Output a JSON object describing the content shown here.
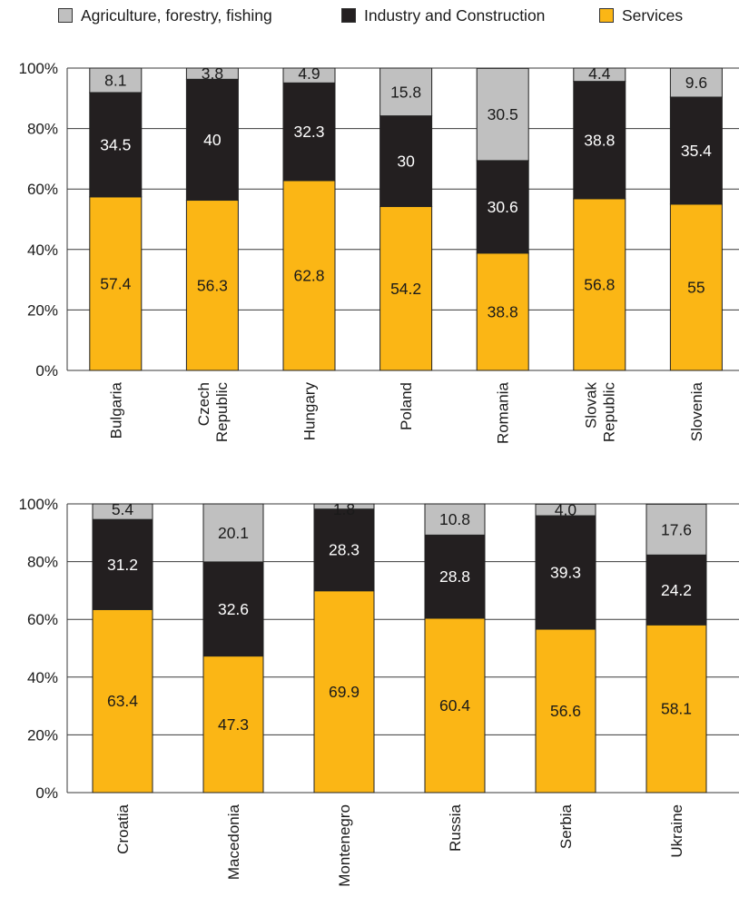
{
  "legend": [
    {
      "name": "Agriculture, forestry, fishing",
      "color": "#c0c0c0"
    },
    {
      "name": "Industry and Construction",
      "color": "#231f20"
    },
    {
      "name": "Services",
      "color": "#fbb615"
    }
  ],
  "chart_data": [
    {
      "type": "bar",
      "stacked": true,
      "percent": true,
      "ylim": [
        0,
        100
      ],
      "yticks": [
        "0%",
        "20%",
        "40%",
        "60%",
        "80%",
        "100%"
      ],
      "legend_position": "top",
      "categories": [
        {
          "lines": [
            "Bulgaria"
          ]
        },
        {
          "lines": [
            "Czech",
            "Republic"
          ]
        },
        {
          "lines": [
            "Hungary"
          ]
        },
        {
          "lines": [
            "Poland"
          ]
        },
        {
          "lines": [
            "Romania"
          ]
        },
        {
          "lines": [
            "Slovak",
            "Republic"
          ]
        },
        {
          "lines": [
            "Slovenia"
          ]
        }
      ],
      "series": [
        {
          "name": "Services",
          "values": [
            57.4,
            56.3,
            62.8,
            54.2,
            38.8,
            56.8,
            55
          ],
          "labels": [
            "57.4",
            "56.3",
            "62.8",
            "54.2",
            "38.8",
            "56.8",
            "55"
          ]
        },
        {
          "name": "Industry and Construction",
          "values": [
            34.5,
            40,
            32.3,
            30,
            30.6,
            38.8,
            35.4
          ],
          "labels": [
            "34.5",
            "40",
            "32.3",
            "30",
            "30.6",
            "38.8",
            "35.4"
          ]
        },
        {
          "name": "Agriculture, forestry, fishing",
          "values": [
            8.1,
            3.8,
            4.9,
            15.8,
            30.5,
            4.4,
            9.6
          ],
          "labels": [
            "8.1",
            "3.8",
            "4.9",
            "15.8",
            "30.5",
            "4.4",
            "9.6"
          ]
        }
      ]
    },
    {
      "type": "bar",
      "stacked": true,
      "percent": true,
      "ylim": [
        0,
        100
      ],
      "yticks": [
        "0%",
        "20%",
        "40%",
        "60%",
        "80%",
        "100%"
      ],
      "categories": [
        {
          "lines": [
            "Croatia"
          ]
        },
        {
          "lines": [
            "Macedonia"
          ]
        },
        {
          "lines": [
            "Montenegro"
          ]
        },
        {
          "lines": [
            "Russia"
          ]
        },
        {
          "lines": [
            "Serbia"
          ]
        },
        {
          "lines": [
            "Ukraine"
          ]
        }
      ],
      "series": [
        {
          "name": "Services",
          "values": [
            63.4,
            47.3,
            69.9,
            60.4,
            56.6,
            58.1
          ],
          "labels": [
            "63.4",
            "47.3",
            "69.9",
            "60.4",
            "56.6",
            "58.1"
          ]
        },
        {
          "name": "Industry and Construction",
          "values": [
            31.2,
            32.6,
            28.3,
            28.8,
            39.3,
            24.2
          ],
          "labels": [
            "31.2",
            "32.6",
            "28.3",
            "28.8",
            "39.3",
            "24.2"
          ]
        },
        {
          "name": "Agriculture, forestry, fishing",
          "values": [
            5.4,
            20.1,
            1.8,
            10.8,
            4.0,
            17.6
          ],
          "labels": [
            "5.4",
            "20.1",
            "1.8",
            "10.8",
            "4.0",
            "17.6"
          ]
        }
      ]
    }
  ]
}
